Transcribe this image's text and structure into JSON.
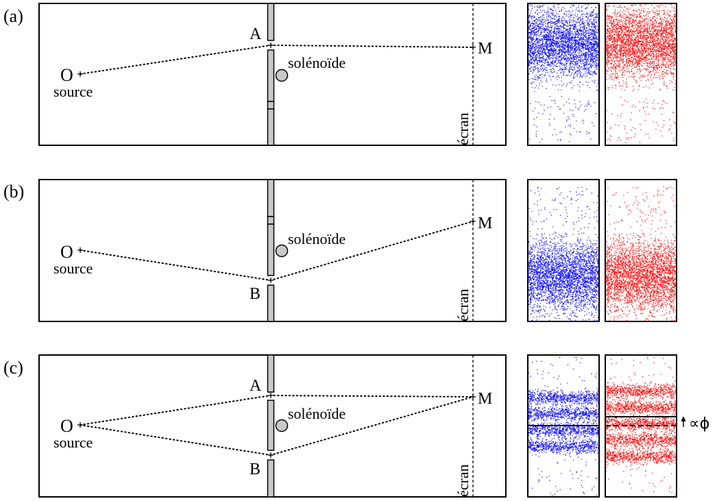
{
  "panels": [
    {
      "id": "a",
      "label": "(a)",
      "slits": [
        "A"
      ],
      "point_label": "M",
      "source_point": "O",
      "source_label": "source",
      "solenoid_label": "solénoïde",
      "screen_label": "écran",
      "patterns": [
        {
          "color": "#0000ff",
          "type": "single_band",
          "band_center": 0.28,
          "background": "lower"
        },
        {
          "color": "#ff0000",
          "type": "single_band",
          "band_center": 0.28,
          "background": "lower"
        }
      ]
    },
    {
      "id": "b",
      "label": "(b)",
      "slits": [
        "B"
      ],
      "point_label": "M",
      "source_point": "O",
      "source_label": "source",
      "solenoid_label": "solénoïde",
      "screen_label": "écran",
      "patterns": [
        {
          "color": "#0000ff",
          "type": "single_band",
          "band_center": 0.68,
          "background": "upper"
        },
        {
          "color": "#ff0000",
          "type": "single_band",
          "band_center": 0.68,
          "background": "upper"
        }
      ]
    },
    {
      "id": "c",
      "label": "(c)",
      "slits": [
        "A",
        "B"
      ],
      "point_label": "M",
      "source_point": "O",
      "source_label": "source",
      "solenoid_label": "solénoïde",
      "screen_label": "écran",
      "patterns": [
        {
          "color": "#0000ff",
          "type": "fringes",
          "fringe_centers": [
            0.3,
            0.415,
            0.53,
            0.645
          ],
          "center_line": "solid"
        },
        {
          "color": "#ff0000",
          "type": "fringes",
          "fringe_centers": [
            0.255,
            0.37,
            0.485,
            0.6,
            0.715
          ],
          "center_line": "solid",
          "reference_line": "dashed"
        }
      ],
      "shift_label": "∝ϕ"
    }
  ],
  "colors": {
    "blue": "#0000ff",
    "red": "#ff0000",
    "wall": "#c8c8c8",
    "solenoid": "#c8c8c8"
  }
}
